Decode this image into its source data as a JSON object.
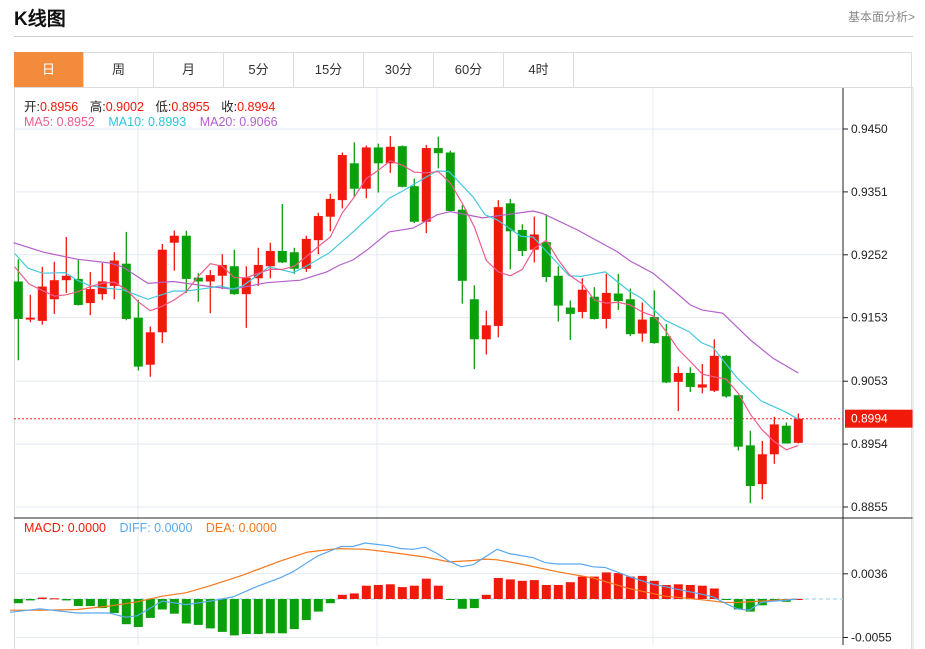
{
  "header": {
    "title": "K线图",
    "link": "基本面分析>"
  },
  "tabs": [
    {
      "label": "日",
      "active": true
    },
    {
      "label": "周"
    },
    {
      "label": "月"
    },
    {
      "label": "5分"
    },
    {
      "label": "15分"
    },
    {
      "label": "30分"
    },
    {
      "label": "60分"
    },
    {
      "label": "4时"
    }
  ],
  "ohlc_legend": {
    "open_label": "开:",
    "open": "0.8956",
    "high_label": "高:",
    "high": "0.9002",
    "low_label": "低:",
    "low": "0.8955",
    "close_label": "收:",
    "close": "0.8994"
  },
  "ma_legend": {
    "ma5": "MA5: 0.8952",
    "ma10": "MA10: 0.8993",
    "ma20": "MA20: 0.9066"
  },
  "macd_legend": {
    "macd": "MACD: 0.0000",
    "diff": "DIFF: 0.0000",
    "dea": "DEA: 0.0000"
  },
  "colors": {
    "up": "#f0190a",
    "down": "#0aa00a",
    "ma5": "#ec5d8e",
    "ma10": "#43c9e0",
    "ma20": "#b45fc9",
    "diff": "#5aa8f0",
    "dea": "#f5781e",
    "active_tab": "#f28c3c"
  },
  "chart_data": {
    "type": "candlestick",
    "price_ticks": [
      "0.9450",
      "0.9351",
      "0.9252",
      "0.9153",
      "0.9053",
      "0.8954",
      "0.8855"
    ],
    "price_range": [
      0.8855,
      0.945
    ],
    "current_price": "0.8994",
    "macd_ticks": [
      "0.0036",
      "-0.0055"
    ],
    "candles": [
      [
        0.921,
        0.9245,
        0.9086,
        0.9151
      ],
      [
        0.915,
        0.9189,
        0.9146,
        0.9153
      ],
      [
        0.9148,
        0.9233,
        0.9142,
        0.9202
      ],
      [
        0.9182,
        0.9241,
        0.9159,
        0.9212
      ],
      [
        0.9212,
        0.928,
        0.9192,
        0.9219
      ],
      [
        0.9214,
        0.9245,
        0.9172,
        0.9173
      ],
      [
        0.9176,
        0.9225,
        0.9157,
        0.9198
      ],
      [
        0.919,
        0.9239,
        0.9181,
        0.921
      ],
      [
        0.9203,
        0.9256,
        0.9182,
        0.9243
      ],
      [
        0.9238,
        0.9288,
        0.9149,
        0.9151
      ],
      [
        0.9153,
        0.9181,
        0.907,
        0.9076
      ],
      [
        0.9079,
        0.9139,
        0.906,
        0.913
      ],
      [
        0.913,
        0.9269,
        0.9113,
        0.926
      ],
      [
        0.9271,
        0.929,
        0.9227,
        0.9282
      ],
      [
        0.9282,
        0.929,
        0.9192,
        0.9214
      ],
      [
        0.9216,
        0.9223,
        0.9178,
        0.921
      ],
      [
        0.921,
        0.9228,
        0.916,
        0.922
      ],
      [
        0.9219,
        0.9253,
        0.9198,
        0.9236
      ],
      [
        0.9234,
        0.926,
        0.9189,
        0.919
      ],
      [
        0.919,
        0.9234,
        0.9137,
        0.9216
      ],
      [
        0.9215,
        0.9263,
        0.9203,
        0.9236
      ],
      [
        0.9234,
        0.9271,
        0.9215,
        0.9258
      ],
      [
        0.9258,
        0.9332,
        0.9239,
        0.924
      ],
      [
        0.9256,
        0.9263,
        0.9222,
        0.923
      ],
      [
        0.923,
        0.9282,
        0.9225,
        0.9277
      ],
      [
        0.9275,
        0.9318,
        0.9253,
        0.9313
      ],
      [
        0.9312,
        0.9348,
        0.9289,
        0.934
      ],
      [
        0.9338,
        0.9413,
        0.9325,
        0.9409
      ],
      [
        0.9396,
        0.9429,
        0.9343,
        0.9356
      ],
      [
        0.9356,
        0.9424,
        0.9341,
        0.9421
      ],
      [
        0.9421,
        0.9427,
        0.935,
        0.9396
      ],
      [
        0.9396,
        0.9439,
        0.9381,
        0.9422
      ],
      [
        0.9423,
        0.9424,
        0.9358,
        0.9359
      ],
      [
        0.936,
        0.9372,
        0.9302,
        0.9304
      ],
      [
        0.9304,
        0.9425,
        0.9286,
        0.942
      ],
      [
        0.942,
        0.9438,
        0.9388,
        0.9412
      ],
      [
        0.9413,
        0.9416,
        0.932,
        0.9321
      ],
      [
        0.9323,
        0.933,
        0.9175,
        0.9211
      ],
      [
        0.9182,
        0.9204,
        0.9072,
        0.9119
      ],
      [
        0.9119,
        0.9164,
        0.9095,
        0.9141
      ],
      [
        0.914,
        0.9338,
        0.9122,
        0.9327
      ],
      [
        0.9333,
        0.934,
        0.9229,
        0.9289
      ],
      [
        0.9291,
        0.93,
        0.925,
        0.9258
      ],
      [
        0.926,
        0.9312,
        0.924,
        0.9284
      ],
      [
        0.9272,
        0.9316,
        0.9209,
        0.9217
      ],
      [
        0.9219,
        0.9234,
        0.9147,
        0.9172
      ],
      [
        0.9169,
        0.918,
        0.9118,
        0.9159
      ],
      [
        0.9162,
        0.9215,
        0.9152,
        0.9197
      ],
      [
        0.9186,
        0.9201,
        0.915,
        0.9151
      ],
      [
        0.9151,
        0.9222,
        0.9136,
        0.9192
      ],
      [
        0.9191,
        0.9222,
        0.9165,
        0.9179
      ],
      [
        0.9182,
        0.9199,
        0.9124,
        0.9127
      ],
      [
        0.9128,
        0.9177,
        0.9115,
        0.915
      ],
      [
        0.9154,
        0.9196,
        0.9112,
        0.9113
      ],
      [
        0.9124,
        0.9143,
        0.905,
        0.9051
      ],
      [
        0.9052,
        0.9076,
        0.9006,
        0.9066
      ],
      [
        0.9066,
        0.9075,
        0.9036,
        0.9044
      ],
      [
        0.9043,
        0.908,
        0.9034,
        0.9048
      ],
      [
        0.9038,
        0.9119,
        0.9036,
        0.9093
      ],
      [
        0.9093,
        0.9094,
        0.9027,
        0.9029
      ],
      [
        0.9031,
        0.9031,
        0.8944,
        0.895
      ],
      [
        0.8952,
        0.8975,
        0.8861,
        0.8888
      ],
      [
        0.8891,
        0.8959,
        0.8867,
        0.8938
      ],
      [
        0.8938,
        0.8997,
        0.8923,
        0.8985
      ],
      [
        0.8983,
        0.8988,
        0.8955,
        0.8955
      ],
      [
        0.8956,
        0.9002,
        0.8955,
        0.8994
      ]
    ],
    "ma5": [
      [
        -0.3,
        0.9233
      ],
      [
        0.9,
        0.9206
      ],
      [
        2,
        0.9196
      ],
      [
        3,
        0.9187
      ],
      [
        4,
        0.9189
      ],
      [
        5,
        0.9194
      ],
      [
        6,
        0.9202
      ],
      [
        7,
        0.9207
      ],
      [
        8,
        0.9209
      ],
      [
        9,
        0.9197
      ],
      [
        10,
        0.9178
      ],
      [
        11,
        0.9164
      ],
      [
        12,
        0.9171
      ],
      [
        13,
        0.9181
      ],
      [
        14,
        0.9194
      ],
      [
        15,
        0.9218
      ],
      [
        16,
        0.9238
      ],
      [
        17,
        0.9234
      ],
      [
        18,
        0.9216
      ],
      [
        19,
        0.9216
      ],
      [
        20,
        0.9223
      ],
      [
        21,
        0.9229
      ],
      [
        22,
        0.9229
      ],
      [
        23,
        0.9234
      ],
      [
        24,
        0.9249
      ],
      [
        25,
        0.9265
      ],
      [
        26,
        0.928
      ],
      [
        27,
        0.9318
      ],
      [
        28,
        0.9343
      ],
      [
        29,
        0.9372
      ],
      [
        30,
        0.9385
      ],
      [
        31,
        0.94
      ],
      [
        32,
        0.9393
      ],
      [
        33,
        0.9382
      ],
      [
        34,
        0.9381
      ],
      [
        35,
        0.9383
      ],
      [
        36,
        0.9365
      ],
      [
        37,
        0.9333
      ],
      [
        38,
        0.9296
      ],
      [
        39,
        0.9243
      ],
      [
        40,
        0.9225
      ],
      [
        41,
        0.9219
      ],
      [
        42,
        0.9229
      ],
      [
        43,
        0.9262
      ],
      [
        44,
        0.9275
      ],
      [
        45,
        0.9244
      ],
      [
        46,
        0.9219
      ],
      [
        47,
        0.9206
      ],
      [
        48,
        0.9181
      ],
      [
        49,
        0.9176
      ],
      [
        50,
        0.9177
      ],
      [
        51,
        0.9173
      ],
      [
        52,
        0.9162
      ],
      [
        53,
        0.9155
      ],
      [
        54,
        0.9131
      ],
      [
        55,
        0.9103
      ],
      [
        56,
        0.9084
      ],
      [
        57,
        0.9064
      ],
      [
        58,
        0.906
      ],
      [
        59,
        0.9056
      ],
      [
        60,
        0.9034
      ],
      [
        61,
        0.9001
      ],
      [
        62,
        0.8976
      ],
      [
        63,
        0.8958
      ],
      [
        64,
        0.8945
      ],
      [
        65,
        0.8952
      ]
    ],
    "ma10": [
      [
        -0.3,
        0.9254
      ],
      [
        0.8,
        0.9231
      ],
      [
        2,
        0.9223
      ],
      [
        3.9,
        0.9224
      ],
      [
        4.9,
        0.9212
      ],
      [
        6,
        0.9203
      ],
      [
        7.6,
        0.9199
      ],
      [
        8.7,
        0.9197
      ],
      [
        10.8,
        0.9182
      ],
      [
        12.9,
        0.9195
      ],
      [
        14,
        0.9195
      ],
      [
        16,
        0.92
      ],
      [
        16.8,
        0.9203
      ],
      [
        17.9,
        0.9198
      ],
      [
        18.7,
        0.9203
      ],
      [
        20.9,
        0.9233
      ],
      [
        22.9,
        0.9224
      ],
      [
        23.9,
        0.9233
      ],
      [
        25.9,
        0.9255
      ],
      [
        27.9,
        0.9288
      ],
      [
        29.9,
        0.9323
      ],
      [
        30.9,
        0.9341
      ],
      [
        31.9,
        0.9351
      ],
      [
        33.5,
        0.9369
      ],
      [
        34.9,
        0.9384
      ],
      [
        35.9,
        0.9383
      ],
      [
        37.9,
        0.9343
      ],
      [
        38.9,
        0.9315
      ],
      [
        39.9,
        0.9307
      ],
      [
        41.9,
        0.9281
      ],
      [
        42.9,
        0.928
      ],
      [
        45.9,
        0.9219
      ],
      [
        46.9,
        0.9218
      ],
      [
        48.9,
        0.9225
      ],
      [
        50.9,
        0.9195
      ],
      [
        51.9,
        0.9184
      ],
      [
        53.9,
        0.9149
      ],
      [
        55.9,
        0.9131
      ],
      [
        56.9,
        0.9114
      ],
      [
        57.9,
        0.9106
      ],
      [
        59.9,
        0.9058
      ],
      [
        61.9,
        0.9022
      ],
      [
        63.9,
        0.9005
      ],
      [
        65,
        0.8993
      ]
    ],
    "ma20": [
      [
        -0.4,
        0.9271
      ],
      [
        2.1,
        0.9256
      ],
      [
        4.9,
        0.9245
      ],
      [
        7.6,
        0.9239
      ],
      [
        8.7,
        0.9233
      ],
      [
        10.8,
        0.9207
      ],
      [
        12.9,
        0.921
      ],
      [
        16,
        0.9202
      ],
      [
        17.9,
        0.9198
      ],
      [
        20.7,
        0.9208
      ],
      [
        23.5,
        0.9212
      ],
      [
        25.7,
        0.9225
      ],
      [
        26.8,
        0.9236
      ],
      [
        27.9,
        0.9244
      ],
      [
        29.1,
        0.926
      ],
      [
        30.9,
        0.9288
      ],
      [
        32.9,
        0.9294
      ],
      [
        34.9,
        0.9315
      ],
      [
        36,
        0.932
      ],
      [
        38.7,
        0.931
      ],
      [
        41,
        0.9316
      ],
      [
        42.9,
        0.9321
      ],
      [
        43.7,
        0.9317
      ],
      [
        46.6,
        0.9291
      ],
      [
        49.9,
        0.9257
      ],
      [
        51,
        0.9242
      ],
      [
        52.9,
        0.9223
      ],
      [
        54.9,
        0.9191
      ],
      [
        56,
        0.9173
      ],
      [
        57,
        0.9165
      ],
      [
        58.7,
        0.916
      ],
      [
        61,
        0.9118
      ],
      [
        62.9,
        0.9089
      ],
      [
        65,
        0.9066
      ]
    ],
    "macd_hist": [
      -0.0006,
      -0.0002,
      0.0002,
      0.0001,
      -0.0002,
      -0.001,
      -0.001,
      -0.0013,
      -0.002,
      -0.0036,
      -0.004,
      -0.0027,
      -0.0015,
      -0.0021,
      -0.0035,
      -0.0037,
      -0.0042,
      -0.0047,
      -0.0052,
      -0.005,
      -0.005,
      -0.0049,
      -0.0049,
      -0.0043,
      -0.003,
      -0.0018,
      -0.0006,
      0.0006,
      0.0008,
      0.0019,
      0.002,
      0.0021,
      0.0017,
      0.0019,
      0.0029,
      0.0019,
      -0.0001,
      -0.0014,
      -0.0013,
      0.0006,
      0.003,
      0.0028,
      0.0026,
      0.0027,
      0.002,
      0.002,
      0.0024,
      0.0032,
      0.0032,
      0.0038,
      0.0037,
      0.0032,
      0.0033,
      0.0026,
      0.002,
      0.0021,
      0.002,
      0.0019,
      0.0015,
      -0.0001,
      -0.0015,
      -0.0018,
      -0.0009,
      -0.0003,
      -0.0004,
      0.0
    ],
    "diff": [
      [
        -0.7,
        -0.0019
      ],
      [
        1.8,
        -0.0014
      ],
      [
        4.9,
        -0.002
      ],
      [
        7.6,
        -0.002
      ],
      [
        8.9,
        -0.0026
      ],
      [
        9.9,
        -0.0024
      ],
      [
        12,
        -0.0003
      ],
      [
        14,
        -0.0008
      ],
      [
        16,
        -0.0003
      ],
      [
        17.9,
        0.0003
      ],
      [
        19.9,
        0.0018
      ],
      [
        21.8,
        0.003
      ],
      [
        22.9,
        0.0039
      ],
      [
        24.9,
        0.0061
      ],
      [
        26.9,
        0.0075
      ],
      [
        27.9,
        0.0075
      ],
      [
        28.9,
        0.008
      ],
      [
        30.9,
        0.0076
      ],
      [
        31.9,
        0.0072
      ],
      [
        32.9,
        0.0071
      ],
      [
        33.9,
        0.0074
      ],
      [
        34.9,
        0.0065
      ],
      [
        35.9,
        0.0054
      ],
      [
        36.9,
        0.0046
      ],
      [
        37.9,
        0.0049
      ],
      [
        38.9,
        0.006
      ],
      [
        39.9,
        0.0071
      ],
      [
        40.9,
        0.0065
      ],
      [
        41.9,
        0.0062
      ],
      [
        42.9,
        0.0059
      ],
      [
        43.9,
        0.0052
      ],
      [
        44.9,
        0.005
      ],
      [
        46.9,
        0.005
      ],
      [
        47.9,
        0.0046
      ],
      [
        48.9,
        0.0045
      ],
      [
        50.9,
        0.0032
      ],
      [
        52.9,
        0.0021
      ],
      [
        54.9,
        0.0014
      ],
      [
        56.9,
        0.0007
      ],
      [
        57.9,
        0.0003
      ],
      [
        58.9,
        -0.0006
      ],
      [
        59.9,
        -0.0014
      ],
      [
        60.9,
        -0.0016
      ],
      [
        61.9,
        -0.0005
      ],
      [
        62.9,
        -0.0003
      ],
      [
        63.9,
        -0.0002
      ],
      [
        64.9,
        0.0
      ]
    ],
    "dea": [
      [
        -0.7,
        -0.0016
      ],
      [
        2.1,
        -0.0016
      ],
      [
        4.9,
        -0.0015
      ],
      [
        7.6,
        -0.001
      ],
      [
        9.9,
        -0.0004
      ],
      [
        12,
        0.0004
      ],
      [
        14,
        0.0009
      ],
      [
        16,
        0.0019
      ],
      [
        18.7,
        0.0034
      ],
      [
        21.8,
        0.0054
      ],
      [
        24.1,
        0.0067
      ],
      [
        26.6,
        0.0072
      ],
      [
        28.9,
        0.0071
      ],
      [
        30.9,
        0.0067
      ],
      [
        33.9,
        0.006
      ],
      [
        35.9,
        0.0053
      ],
      [
        37.9,
        0.0055
      ],
      [
        38.9,
        0.0057
      ],
      [
        39.9,
        0.0056
      ],
      [
        41.9,
        0.005
      ],
      [
        44.9,
        0.0039
      ],
      [
        47.9,
        0.003
      ],
      [
        50.9,
        0.0015
      ],
      [
        53.9,
        0.0004
      ],
      [
        56.9,
        -0.0001
      ],
      [
        58.9,
        -0.0005
      ],
      [
        59.9,
        -0.0005
      ],
      [
        61.9,
        -0.0003
      ],
      [
        64.9,
        0.0
      ]
    ]
  }
}
